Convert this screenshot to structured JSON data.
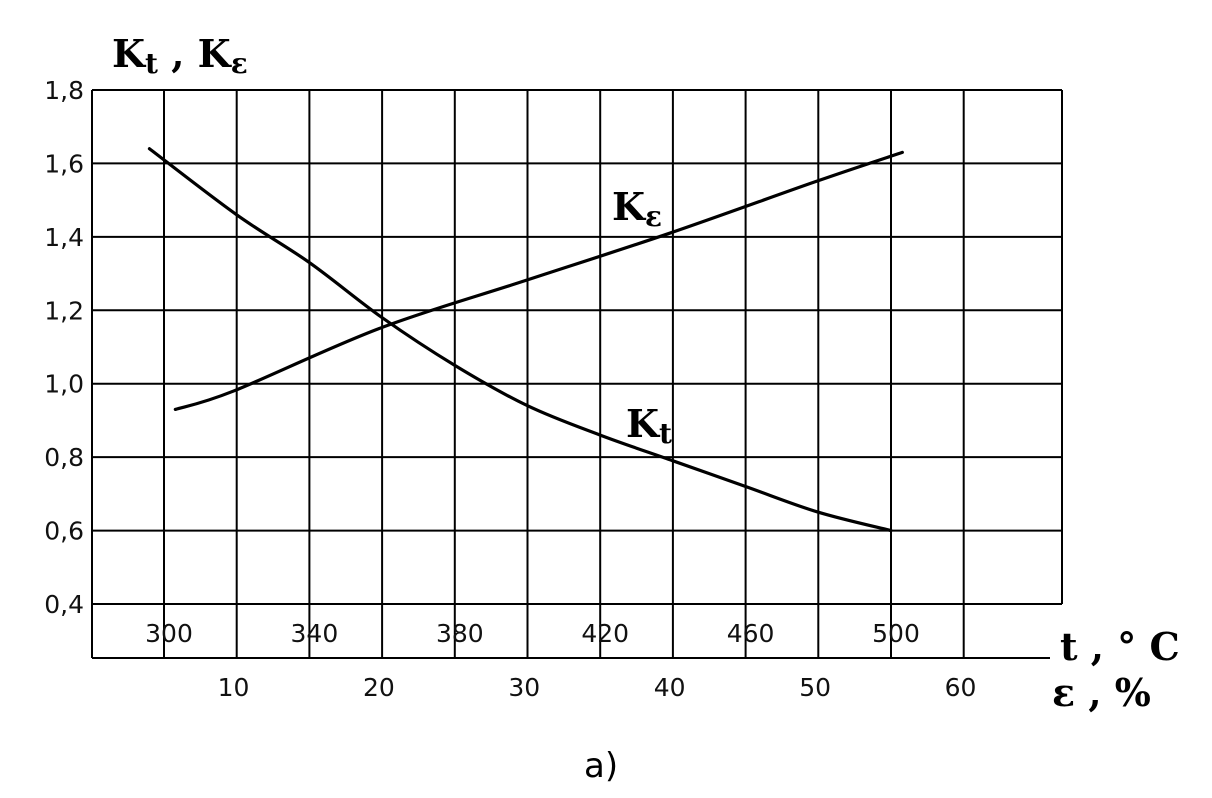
{
  "chart_data": {
    "type": "line",
    "title": "",
    "ylabel_main": "K",
    "ylabel_sub1": "t",
    "ylabel_sep": " , ",
    "ylabel_sub2": "ε",
    "y_ticks": [
      "0,4",
      "0,6",
      "0,8",
      "1,0",
      "1,2",
      "1,4",
      "1,6",
      "1,8"
    ],
    "ylim": [
      0.4,
      1.8
    ],
    "x_top": {
      "label": "t , ° C",
      "ticks": [
        "300",
        "340",
        "380",
        "420",
        "460",
        "500"
      ],
      "tick_values": [
        300,
        340,
        380,
        420,
        460,
        500
      ],
      "unit": "°C"
    },
    "x_bottom": {
      "label": "ε , %",
      "ticks": [
        "10",
        "20",
        "30",
        "40",
        "50",
        "60"
      ],
      "tick_values": [
        10,
        20,
        30,
        40,
        50,
        60
      ],
      "unit": "%"
    },
    "grid": true,
    "caption": "a)",
    "series": [
      {
        "name_main": "K",
        "name_sub": "t",
        "axis": "t",
        "x": [
          296,
          320,
          340,
          360,
          380,
          400,
          420,
          440,
          460,
          480,
          500
        ],
        "y": [
          1.64,
          1.46,
          1.33,
          1.18,
          1.05,
          0.94,
          0.86,
          0.79,
          0.72,
          0.65,
          0.6
        ]
      },
      {
        "name_main": "K",
        "name_sub": "ε",
        "axis": "epsilon",
        "x": [
          6,
          10,
          20,
          30,
          40,
          50,
          56
        ],
        "y": [
          0.93,
          0.98,
          1.15,
          1.28,
          1.41,
          1.55,
          1.63
        ]
      }
    ]
  }
}
